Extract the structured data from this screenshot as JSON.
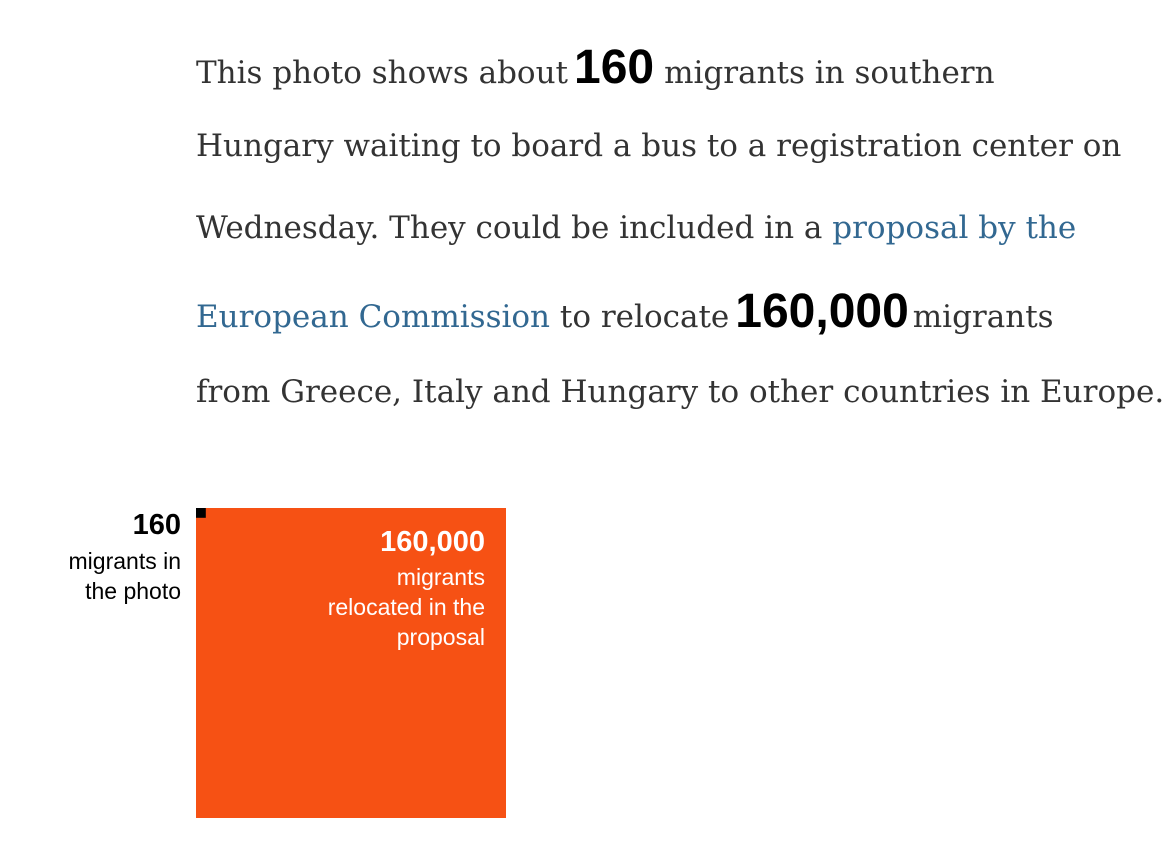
{
  "article": {
    "line1_pre": "This photo shows about",
    "photo_count": "160",
    "line1_post": "migrants in southern",
    "line2": "Hungary waiting to board a bus to a registration center on",
    "line3_pre": "Wednesday. They could be included in a",
    "link_part1": "proposal by the",
    "link_part2": "European Commission",
    "line4_mid": "to relocate",
    "relocated_count": "160,000",
    "line4_post": "migrants",
    "line5": "from Greece, Italy and Hungary to other countries in Europe."
  },
  "colors": {
    "text": "#333333",
    "link": "#326891",
    "accent": "#f65114",
    "small_square": "#000000"
  },
  "chart_data": {
    "type": "area-square",
    "items": [
      {
        "value": 160,
        "value_label": "160",
        "caption_lines": [
          "migrants in",
          "the photo"
        ]
      },
      {
        "value": 160000,
        "value_label": "160,000",
        "caption_lines": [
          "migrants",
          "relocated in the",
          "proposal"
        ]
      }
    ]
  }
}
